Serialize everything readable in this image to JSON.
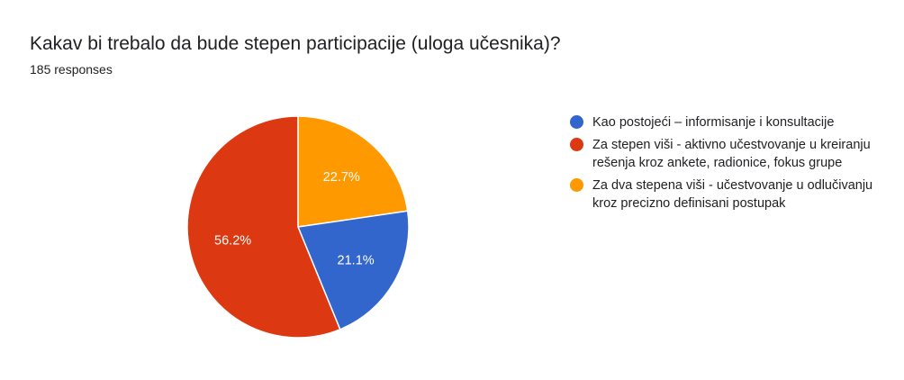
{
  "header": {
    "title": "Kakav bi trebalo da bude stepen participacije (uloga učesnika)?",
    "responses": "185 responses"
  },
  "chart_data": {
    "type": "pie",
    "title": "Kakav bi trebalo da bude stepen participacije (uloga učesnika)?",
    "subtitle": "185 responses",
    "legend_position": "right",
    "slices": [
      {
        "label": "Kao postojeći – informisanje i konsultacije",
        "value": 21.1,
        "value_label": "21.1%",
        "color": "#3366cc"
      },
      {
        "label": "Za stepen viši - aktivno učestvovanje u kreiranju rešenja kroz ankete, radionice, fokus grupe",
        "value": 56.2,
        "value_label": "56.2%",
        "color": "#dc3912"
      },
      {
        "label": "Za dva stepena viši - učestvovanje u odlučivanju kroz precizno definisani postupak",
        "value": 22.7,
        "value_label": "22.7%",
        "color": "#ff9900"
      }
    ]
  }
}
